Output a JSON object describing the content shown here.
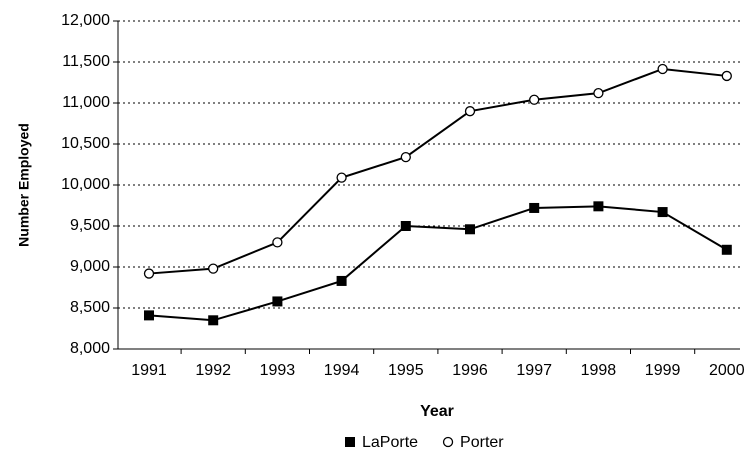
{
  "chart_data": {
    "type": "line",
    "x_label": "Year",
    "y_label": "Number Employed",
    "categories": [
      "1991",
      "1992",
      "1993",
      "1994",
      "1995",
      "1996",
      "1997",
      "1998",
      "1999",
      "2000"
    ],
    "series": [
      {
        "name": "LaPorte",
        "color": "#000000",
        "marker": "square",
        "values": [
          8410,
          8350,
          8580,
          8830,
          9500,
          9460,
          9720,
          9740,
          9670,
          9210
        ]
      },
      {
        "name": "Porter",
        "color": "#000000",
        "marker": "circle",
        "values": [
          8920,
          8980,
          9300,
          10090,
          10340,
          10900,
          11040,
          11120,
          11415,
          11330
        ]
      }
    ],
    "ylim": [
      8000,
      12000
    ],
    "yticks": [
      {
        "value": 8000,
        "label": "8,000"
      },
      {
        "value": 8500,
        "label": "8,500"
      },
      {
        "value": 9000,
        "label": "9,000"
      },
      {
        "value": 9500,
        "label": "9,500"
      },
      {
        "value": 10000,
        "label": "10,000"
      },
      {
        "value": 10500,
        "label": "10,500"
      },
      {
        "value": 11000,
        "label": "11,000"
      },
      {
        "value": 11500,
        "label": "11,500"
      },
      {
        "value": 12000,
        "label": "12,000"
      }
    ],
    "grid": true,
    "legend": "bottom"
  }
}
